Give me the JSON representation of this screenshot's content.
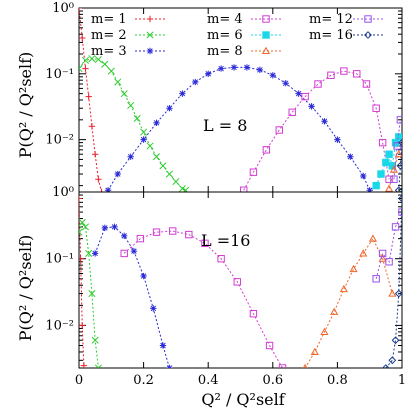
{
  "chart_data": [
    {
      "type": "line",
      "panel": "top",
      "annotation": "L = 8",
      "ylabel": "P(Q² / Q²self)",
      "yscale": "log",
      "ylim": [
        0.0016,
        1.0
      ],
      "xlim": [
        0,
        1
      ],
      "y_tick_labels": [
        "10⁻²",
        "10⁻¹",
        "10⁰"
      ],
      "y_tick_values": [
        0.01,
        0.1,
        1
      ],
      "series": [
        {
          "name": "m=  1",
          "color": "#e8202a",
          "marker": "plus",
          "x": [
            0.0,
            0.01,
            0.02,
            0.03,
            0.04,
            0.05,
            0.06,
            0.07
          ],
          "y": [
            1.0,
            0.35,
            0.12,
            0.045,
            0.016,
            0.006,
            0.0025,
            0.0016
          ]
        },
        {
          "name": "m=  2",
          "color": "#2ecc2e",
          "marker": "cross",
          "x": [
            0.0,
            0.02,
            0.04,
            0.06,
            0.08,
            0.1,
            0.12,
            0.14,
            0.16,
            0.18,
            0.2,
            0.22,
            0.24,
            0.26,
            0.28,
            0.3,
            0.32,
            0.33
          ],
          "y": [
            0.12,
            0.16,
            0.17,
            0.165,
            0.14,
            0.11,
            0.075,
            0.05,
            0.033,
            0.021,
            0.013,
            0.008,
            0.0055,
            0.004,
            0.003,
            0.0023,
            0.0018,
            0.0017
          ]
        },
        {
          "name": "m=  3",
          "color": "#2a2ad8",
          "marker": "star",
          "x": [
            0.09,
            0.12,
            0.16,
            0.2,
            0.24,
            0.28,
            0.32,
            0.36,
            0.4,
            0.44,
            0.48,
            0.52,
            0.56,
            0.6,
            0.64,
            0.68,
            0.72,
            0.76,
            0.8,
            0.84,
            0.88,
            0.9
          ],
          "y": [
            0.0017,
            0.003,
            0.0055,
            0.01,
            0.018,
            0.03,
            0.05,
            0.075,
            0.1,
            0.12,
            0.125,
            0.125,
            0.115,
            0.095,
            0.072,
            0.05,
            0.032,
            0.019,
            0.01,
            0.0055,
            0.0028,
            0.0017
          ]
        },
        {
          "name": "m=  4",
          "color": "#d23cd2",
          "marker": "square",
          "x": [
            0.51,
            0.54,
            0.58,
            0.62,
            0.66,
            0.7,
            0.74,
            0.78,
            0.82,
            0.86,
            0.89,
            0.92,
            0.94,
            0.96
          ],
          "y": [
            0.0017,
            0.0032,
            0.007,
            0.014,
            0.026,
            0.045,
            0.07,
            0.095,
            0.11,
            0.1,
            0.07,
            0.03,
            0.009,
            0.0025
          ]
        },
        {
          "name": "m=  6",
          "color": "#1ad8e8",
          "marker": "filled-square",
          "x": [
            0.92,
            0.935,
            0.95,
            0.96,
            0.97,
            0.98,
            0.99
          ],
          "y": [
            0.002,
            0.003,
            0.0045,
            0.006,
            0.004,
            0.009,
            0.011
          ]
        },
        {
          "name": "m=  8",
          "color": "#f0642a",
          "marker": "triangle",
          "x": [
            0.96,
            0.975,
            0.99
          ],
          "y": [
            0.0018,
            0.0035,
            0.006
          ]
        },
        {
          "name": "m= 12",
          "color": "#9a50e8",
          "marker": "square",
          "x": [
            0.975,
            0.985,
            0.995
          ],
          "y": [
            0.0025,
            0.008,
            0.02
          ]
        },
        {
          "name": "m= 16",
          "color": "#1a3a8c",
          "marker": "diamond",
          "x": [
            0.99,
            0.995,
            1.0
          ],
          "y": [
            0.0017,
            0.004,
            0.009
          ]
        },
        {
          "name": "",
          "color": "#000000",
          "marker": "circle",
          "x": [
            1.0
          ],
          "y": [
            0.0016
          ]
        }
      ]
    },
    {
      "type": "line",
      "panel": "bottom",
      "annotation": "L =16",
      "ylabel": "P(Q² / Q²self)",
      "xlabel": "Q² / Q²self",
      "yscale": "log",
      "ylim": [
        0.0023,
        1.0
      ],
      "xlim": [
        0,
        1
      ],
      "x_tick_labels": [
        "0",
        "0.2",
        "0.4",
        "0.6",
        "0.8",
        "1"
      ],
      "x_tick_values": [
        0,
        0.2,
        0.4,
        0.6,
        0.8,
        1.0
      ],
      "y_tick_labels": [
        "10⁻²",
        "10⁻¹",
        "10⁰"
      ],
      "y_tick_values": [
        0.01,
        0.1,
        1
      ],
      "series": [
        {
          "name": "m=  1",
          "color": "#e8202a",
          "marker": "plus",
          "x": [
            0.0,
            0.005,
            0.01,
            0.015
          ],
          "y": [
            0.8,
            0.1,
            0.01,
            0.0025
          ]
        },
        {
          "name": "m=  2",
          "color": "#2ecc2e",
          "marker": "cross",
          "x": [
            0.0,
            0.01,
            0.02,
            0.03,
            0.04,
            0.05,
            0.06
          ],
          "y": [
            0.25,
            0.35,
            0.3,
            0.12,
            0.03,
            0.006,
            0.0023
          ]
        },
        {
          "name": "m=  3",
          "color": "#2a2ad8",
          "marker": "star",
          "x": [
            0.05,
            0.08,
            0.11,
            0.14,
            0.17,
            0.2,
            0.23,
            0.26,
            0.28
          ],
          "y": [
            0.12,
            0.29,
            0.3,
            0.22,
            0.13,
            0.055,
            0.018,
            0.005,
            0.0023
          ]
        },
        {
          "name": "m=  4",
          "color": "#d23cd2",
          "marker": "square",
          "x": [
            0.14,
            0.19,
            0.24,
            0.29,
            0.34,
            0.39,
            0.44,
            0.49,
            0.54,
            0.59,
            0.63
          ],
          "y": [
            0.12,
            0.2,
            0.25,
            0.26,
            0.23,
            0.17,
            0.1,
            0.045,
            0.015,
            0.005,
            0.0023
          ]
        },
        {
          "name": "m=  8",
          "color": "#f0642a",
          "marker": "triangle",
          "x": [
            0.7,
            0.73,
            0.76,
            0.79,
            0.82,
            0.85,
            0.88,
            0.91,
            0.94,
            0.97
          ],
          "y": [
            0.0023,
            0.004,
            0.008,
            0.016,
            0.035,
            0.07,
            0.12,
            0.2,
            0.1,
            0.03
          ]
        },
        {
          "name": "m= 12",
          "color": "#9a50e8",
          "marker": "square",
          "x": [
            0.92,
            0.94,
            0.96,
            0.98,
            1.0
          ],
          "y": [
            0.05,
            0.12,
            0.09,
            0.3,
            0.5
          ]
        },
        {
          "name": "m= 16",
          "color": "#1a3a8c",
          "marker": "diamond",
          "x": [
            0.95,
            0.97,
            0.98,
            0.99,
            1.0
          ],
          "y": [
            0.0023,
            0.003,
            0.006,
            0.03,
            0.8
          ]
        }
      ]
    }
  ]
}
